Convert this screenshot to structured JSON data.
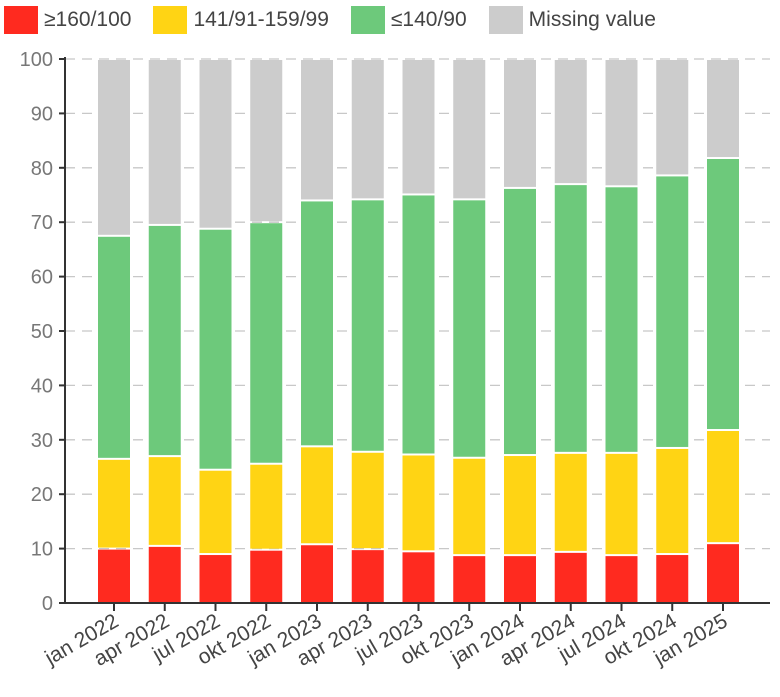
{
  "chart_data": {
    "type": "bar",
    "stacked": true,
    "title": "",
    "xlabel": "",
    "ylabel": "",
    "ylim": [
      0,
      100
    ],
    "yticks": [
      "0",
      "10",
      "20",
      "30",
      "40",
      "50",
      "60",
      "70",
      "80",
      "90",
      "100"
    ],
    "grid": true,
    "legend_position": "top-left",
    "categories": [
      "jan 2022",
      "apr 2022",
      "jul 2022",
      "okt 2022",
      "jan 2023",
      "apr 2023",
      "jul 2023",
      "okt 2023",
      "jan 2024",
      "apr 2024",
      "jul 2024",
      "okt 2024",
      "jan 2025"
    ],
    "series": [
      {
        "name": "≥160/100",
        "color": "#ff2a1f",
        "values": [
          10,
          10.5,
          9,
          9.8,
          10.8,
          9.9,
          9.5,
          8.8,
          8.8,
          9.4,
          8.8,
          9,
          11
        ]
      },
      {
        "name": "141/91-159/99",
        "color": "#ffd414",
        "values": [
          16.5,
          16.5,
          15.5,
          15.8,
          18,
          17.9,
          17.8,
          17.9,
          18.4,
          18.2,
          18.8,
          19.5,
          20.8
        ]
      },
      {
        "name": "≤140/90",
        "color": "#6dc97b",
        "values": [
          41,
          42.5,
          44.3,
          44.4,
          45.2,
          46.4,
          47.8,
          47.5,
          49.1,
          49.4,
          49,
          50.1,
          50
        ]
      },
      {
        "name": "Missing value",
        "color": "#cccccc",
        "values": [
          32.5,
          30.5,
          31.2,
          30,
          26,
          25.8,
          24.9,
          25.8,
          23.7,
          23,
          23.4,
          21.4,
          18.2
        ]
      }
    ]
  }
}
